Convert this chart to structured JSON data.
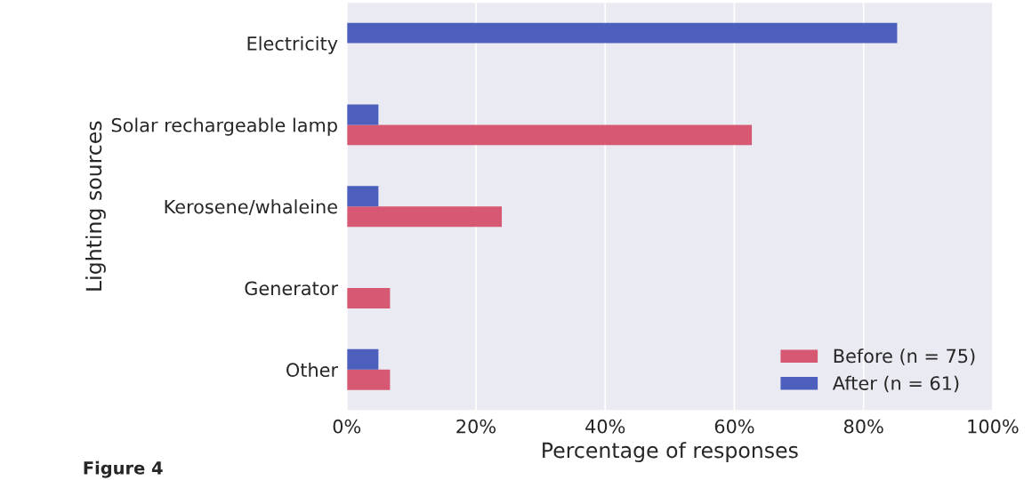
{
  "chart_data": {
    "type": "bar",
    "orientation": "horizontal",
    "xlabel": "Percentage of responses",
    "ylabel": "Lighting sources",
    "categories": [
      "Electricity",
      "Solar rechargeable lamp",
      "Kerosene/whaleine",
      "Generator",
      "Other"
    ],
    "series": [
      {
        "name": "Before (n = 75)",
        "color": "#d6506a",
        "values": [
          null,
          62.7,
          24,
          6.7,
          6.7
        ]
      },
      {
        "name": "After (n = 61)",
        "color": "#4457b8",
        "values": [
          85.2,
          4.9,
          4.9,
          null,
          4.9
        ]
      }
    ],
    "xlim": [
      0,
      100
    ],
    "xticks": [
      {
        "value": 0,
        "label": "0%"
      },
      {
        "value": 20,
        "label": "20%"
      },
      {
        "value": 40,
        "label": "40%"
      },
      {
        "value": 60,
        "label": "60%"
      },
      {
        "value": 80,
        "label": "80%"
      },
      {
        "value": 100,
        "label": "100%"
      }
    ],
    "grid": true,
    "legend": "bottom right",
    "annotations": [
      "Figure 4"
    ]
  }
}
